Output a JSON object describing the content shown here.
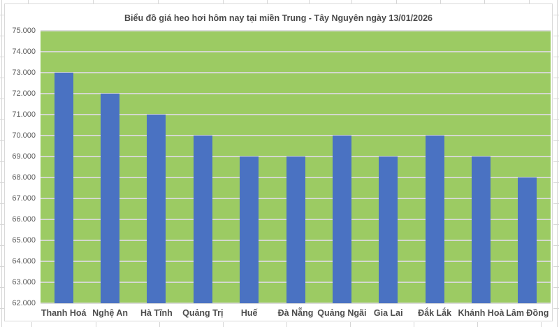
{
  "chart_data": {
    "type": "bar",
    "title": "Biểu đồ giá heo hơi hôm nay tại miền Trung - Tây Nguyên ngày 13/01/2026",
    "categories": [
      "Thanh Hoá",
      "Nghệ An",
      "Hà Tĩnh",
      "Quảng Trị",
      "Huế",
      "Đà Nẵng",
      "Quảng Ngãi",
      "Gia Lai",
      "Đắk Lắk",
      "Khánh Hoà",
      "Lâm Đồng"
    ],
    "values": [
      73000,
      72000,
      71000,
      70000,
      69000,
      69000,
      70000,
      69000,
      70000,
      69000,
      68000
    ],
    "xlabel": "",
    "ylabel": "",
    "ylim": [
      62000,
      75000
    ],
    "ytick_step": 1000,
    "ytick_labels": [
      "75.000",
      "74.000",
      "73.000",
      "72.000",
      "71.000",
      "70.000",
      "69.000",
      "68.000",
      "67.000",
      "66.000",
      "65.000",
      "64.000",
      "63.000",
      "62.000"
    ],
    "grid": "horizontal",
    "legend_position": "none",
    "colors": {
      "bar": "#4A72C2",
      "plot_background": "#9CCB63",
      "gridline": "#D9D9D9",
      "chart_background": "#FFFFFF",
      "chart_border": "#D9D9D9",
      "title_text": "#4A4A4A",
      "axis_text": "#595959",
      "category_text": "#4D4D4D"
    }
  }
}
